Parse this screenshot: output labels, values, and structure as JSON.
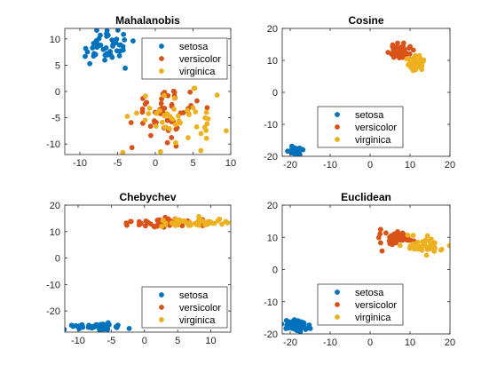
{
  "figure": {
    "background": "#ffffff",
    "series_colors": {
      "setosa": "#0072BD",
      "versicolor": "#D95319",
      "virginica": "#EDB120"
    }
  },
  "chart_data": [
    {
      "type": "scatter",
      "title": "Mahalanobis",
      "xlabel": "",
      "ylabel": "",
      "xlim": [
        -12,
        10
      ],
      "ylim": [
        -12,
        12
      ],
      "xticks": [
        -10,
        -5,
        0,
        5,
        10
      ],
      "yticks": [
        -10,
        -5,
        0,
        5,
        10
      ],
      "grid": false,
      "legend": {
        "placement": "top-right",
        "entries": [
          "setosa",
          "versicolor",
          "virginica"
        ]
      },
      "series": [
        {
          "name": "setosa",
          "color": "#0072BD",
          "clusters": [
            {
              "cx": -6.5,
              "cy": 8.5,
              "sx": 1.9,
              "sy": 1.8,
              "n": 50
            }
          ]
        },
        {
          "name": "versicolor",
          "color": "#D95319",
          "clusters": [
            {
              "cx": 1.5,
              "cy": -3.5,
              "sx": 2.3,
              "sy": 2.6,
              "n": 50
            }
          ]
        },
        {
          "name": "virginica",
          "color": "#EDB120",
          "clusters": [
            {
              "cx": 3.5,
              "cy": -5.5,
              "sx": 3.0,
              "sy": 3.0,
              "n": 50
            }
          ]
        }
      ]
    },
    {
      "type": "scatter",
      "title": "Cosine",
      "xlabel": "",
      "ylabel": "",
      "xlim": [
        -22,
        20
      ],
      "ylim": [
        -20,
        20
      ],
      "xticks": [
        -20,
        -10,
        0,
        10,
        20
      ],
      "yticks": [
        -20,
        -10,
        0,
        10,
        20
      ],
      "grid": false,
      "legend": {
        "placement": "bottom-left",
        "entries": [
          "setosa",
          "versicolor",
          "virginica"
        ]
      },
      "series": [
        {
          "name": "setosa",
          "color": "#0072BD",
          "clusters": [
            {
              "cx": -18.5,
              "cy": -18.2,
              "sx": 0.9,
              "sy": 0.7,
              "n": 50
            }
          ]
        },
        {
          "name": "versicolor",
          "color": "#D95319",
          "clusters": [
            {
              "cx": 7.5,
              "cy": 12.5,
              "sx": 1.4,
              "sy": 1.1,
              "n": 50
            }
          ]
        },
        {
          "name": "virginica",
          "color": "#EDB120",
          "clusters": [
            {
              "cx": 11.5,
              "cy": 9.0,
              "sx": 1.0,
              "sy": 1.2,
              "n": 50
            }
          ]
        }
      ]
    },
    {
      "type": "scatter",
      "title": "Chebychev",
      "xlabel": "",
      "ylabel": "",
      "xlim": [
        -12,
        13
      ],
      "ylim": [
        -28,
        20
      ],
      "xticks": [
        -10,
        -5,
        0,
        5,
        10
      ],
      "yticks": [
        -20,
        -10,
        0,
        10,
        20
      ],
      "grid": false,
      "legend": {
        "placement": "bottom-right",
        "entries": [
          "setosa",
          "versicolor",
          "virginica"
        ]
      },
      "series": [
        {
          "name": "setosa",
          "color": "#0072BD",
          "clusters": [
            {
              "cx": -7.5,
              "cy": -26.0,
              "sx": 1.8,
              "sy": 0.6,
              "n": 50
            }
          ]
        },
        {
          "name": "versicolor",
          "color": "#D95319",
          "clusters": [
            {
              "cx": 2.5,
              "cy": 13.2,
              "sx": 2.8,
              "sy": 0.8,
              "n": 50
            }
          ]
        },
        {
          "name": "virginica",
          "color": "#EDB120",
          "clusters": [
            {
              "cx": 7.5,
              "cy": 13.3,
              "sx": 2.8,
              "sy": 0.8,
              "n": 50
            }
          ]
        }
      ]
    },
    {
      "type": "scatter",
      "title": "Euclidean",
      "xlabel": "",
      "ylabel": "",
      "xlim": [
        -22,
        20
      ],
      "ylim": [
        -20,
        20
      ],
      "xticks": [
        -20,
        -10,
        0,
        10,
        20
      ],
      "yticks": [
        -20,
        -10,
        0,
        10,
        20
      ],
      "grid": false,
      "legend": {
        "placement": "bottom-left",
        "entries": [
          "setosa",
          "versicolor",
          "virginica"
        ]
      },
      "series": [
        {
          "name": "setosa",
          "color": "#0072BD",
          "clusters": [
            {
              "cx": -18.5,
              "cy": -17.5,
              "sx": 1.6,
              "sy": 0.9,
              "n": 50
            }
          ]
        },
        {
          "name": "versicolor",
          "color": "#D95319",
          "clusters": [
            {
              "cx": 7.0,
              "cy": 9.5,
              "sx": 2.2,
              "sy": 1.2,
              "n": 50
            }
          ]
        },
        {
          "name": "virginica",
          "color": "#EDB120",
          "clusters": [
            {
              "cx": 13.5,
              "cy": 7.5,
              "sx": 2.2,
              "sy": 1.2,
              "n": 50
            }
          ]
        }
      ]
    }
  ]
}
